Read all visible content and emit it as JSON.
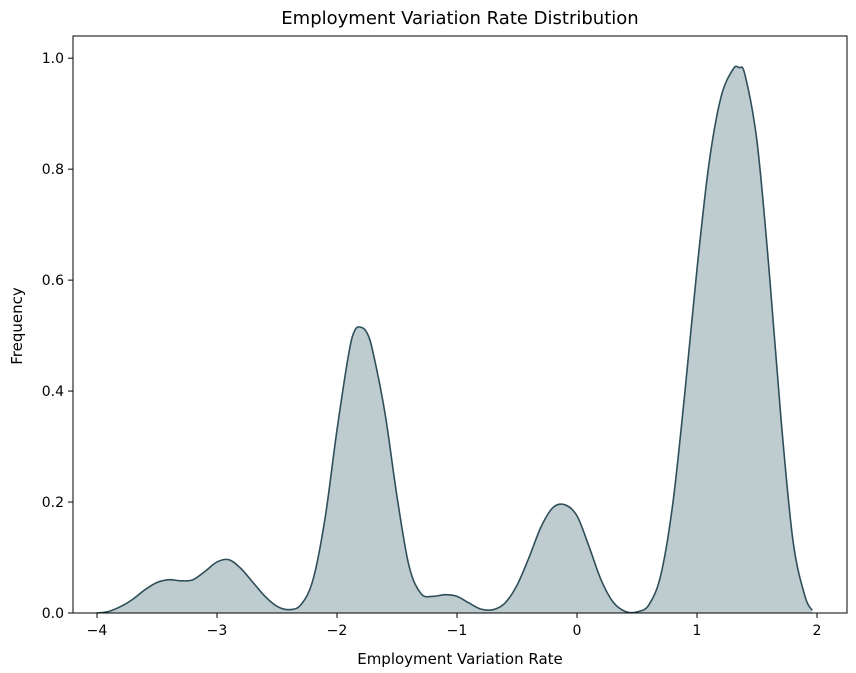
{
  "chart_data": {
    "type": "area",
    "title": "Employment Variation Rate Distribution",
    "xlabel": "Employment Variation Rate",
    "ylabel": "Frequency",
    "xlim": [
      -4.2,
      2.25
    ],
    "ylim": [
      0,
      1.04
    ],
    "x_ticks": [
      -4,
      -3,
      -2,
      -1,
      0,
      1,
      2
    ],
    "x_tick_labels": [
      "−4",
      "−3",
      "−2",
      "−1",
      "0",
      "1",
      "2"
    ],
    "y_ticks": [
      0.0,
      0.2,
      0.4,
      0.6,
      0.8,
      1.0
    ],
    "y_tick_labels": [
      "0.0",
      "0.2",
      "0.4",
      "0.6",
      "0.8",
      "1.0"
    ],
    "grid": false,
    "fill_color": "#bfcccf",
    "line_color": "#2e4f5a",
    "series": [
      {
        "x": [
          -4.0,
          -3.9,
          -3.8,
          -3.7,
          -3.6,
          -3.5,
          -3.4,
          -3.3,
          -3.2,
          -3.1,
          -3.0,
          -2.9,
          -2.8,
          -2.7,
          -2.6,
          -2.5,
          -2.4,
          -2.3,
          -2.2,
          -2.1,
          -2.0,
          -1.9,
          -1.85,
          -1.8,
          -1.75,
          -1.7,
          -1.6,
          -1.5,
          -1.4,
          -1.3,
          -1.2,
          -1.1,
          -1.0,
          -0.9,
          -0.8,
          -0.7,
          -0.6,
          -0.5,
          -0.4,
          -0.3,
          -0.2,
          -0.1,
          0.0,
          0.1,
          0.2,
          0.3,
          0.4,
          0.5,
          0.6,
          0.7,
          0.8,
          0.9,
          1.0,
          1.1,
          1.2,
          1.3,
          1.35,
          1.4,
          1.5,
          1.6,
          1.7,
          1.8,
          1.9,
          1.96
        ],
        "y": [
          0.0,
          0.003,
          0.012,
          0.025,
          0.042,
          0.055,
          0.06,
          0.058,
          0.06,
          0.075,
          0.092,
          0.096,
          0.08,
          0.055,
          0.03,
          0.012,
          0.006,
          0.015,
          0.06,
          0.17,
          0.33,
          0.47,
          0.51,
          0.515,
          0.505,
          0.47,
          0.36,
          0.21,
          0.085,
          0.035,
          0.03,
          0.033,
          0.03,
          0.018,
          0.007,
          0.006,
          0.018,
          0.05,
          0.1,
          0.155,
          0.19,
          0.195,
          0.175,
          0.12,
          0.06,
          0.02,
          0.003,
          0.002,
          0.015,
          0.07,
          0.2,
          0.4,
          0.62,
          0.81,
          0.93,
          0.98,
          0.983,
          0.97,
          0.85,
          0.62,
          0.35,
          0.13,
          0.03,
          0.005
        ]
      }
    ]
  }
}
